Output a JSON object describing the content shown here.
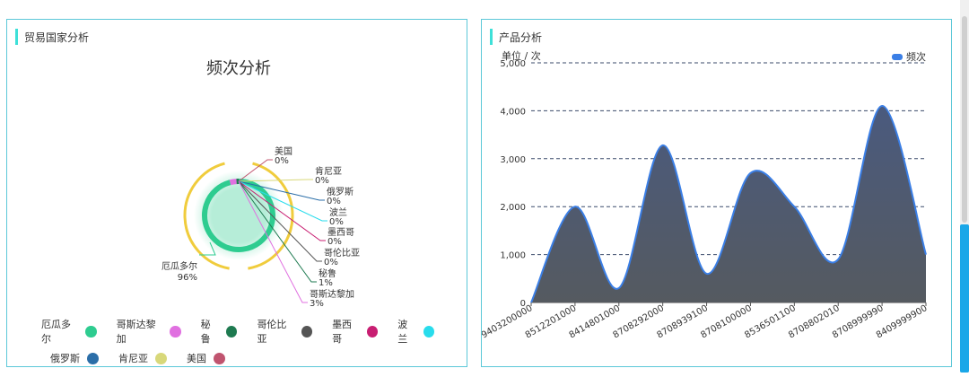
{
  "left_panel": {
    "title": "贸易国家分析"
  },
  "right_panel": {
    "title": "产品分析",
    "legend_label": "频次",
    "unit_label": "单位 / 次"
  },
  "colors": {
    "accent": "#3ee0d8",
    "border": "#5cc8d8",
    "area_fill": "#4a5a76",
    "area_line": "#3b7fe6"
  },
  "chart_data": [
    {
      "type": "pie",
      "title": "频次分析",
      "slices": [
        {
          "name": "美国",
          "label": "美国",
          "percent_label": "0%",
          "value": 0.0,
          "color": "#c0546f"
        },
        {
          "name": "肯尼亚",
          "label": "肯尼亚",
          "percent_label": "0%",
          "value": 0.0,
          "color": "#d8d87a"
        },
        {
          "name": "俄罗斯",
          "label": "俄罗斯",
          "percent_label": "0%",
          "value": 0.0,
          "color": "#2b6ea8"
        },
        {
          "name": "波兰",
          "label": "波兰",
          "percent_label": "0%",
          "value": 0.0,
          "color": "#28dcec"
        },
        {
          "name": "墨西哥",
          "label": "墨西哥",
          "percent_label": "0%",
          "value": 0.0,
          "color": "#c81e72"
        },
        {
          "name": "哥伦比亚",
          "label": "哥伦比亚",
          "percent_label": "0%",
          "value": 0.0,
          "color": "#555555"
        },
        {
          "name": "秘鲁",
          "label": "秘鲁",
          "percent_label": "1%",
          "value": 1.0,
          "color": "#1e7a50"
        },
        {
          "name": "哥斯达黎加",
          "label": "哥斯达黎加",
          "percent_label": "3%",
          "value": 3.0,
          "color": "#e070e0"
        },
        {
          "name": "厄瓜多尔",
          "label": "厄瓜多尔",
          "percent_label": "96%",
          "value": 96.0,
          "color": "#2ecc90"
        }
      ],
      "legend_rows": [
        [
          "厄瓜多尔",
          "哥斯达黎加",
          "秘鲁",
          "哥伦比亚",
          "墨西哥",
          "波兰"
        ],
        [
          "俄罗斯",
          "肯尼亚",
          "美国"
        ]
      ]
    },
    {
      "type": "area",
      "x": [
        "9403200000",
        "8512201000",
        "8414801000",
        "8708292000",
        "8708939100",
        "8708100000",
        "8536501100",
        "8708802010",
        "8708999990",
        "8409999900"
      ],
      "series": [
        {
          "name": "频次",
          "values": [
            0,
            2000,
            300,
            3280,
            600,
            2700,
            2000,
            900,
            4100,
            1000
          ]
        }
      ],
      "ylim": [
        0,
        5000
      ],
      "yticks": [
        "0",
        "1,000",
        "2,000",
        "3,000",
        "4,000",
        "5,000"
      ],
      "ylabel": "单位 / 次",
      "grid": true,
      "legend_position": "top-right"
    }
  ]
}
